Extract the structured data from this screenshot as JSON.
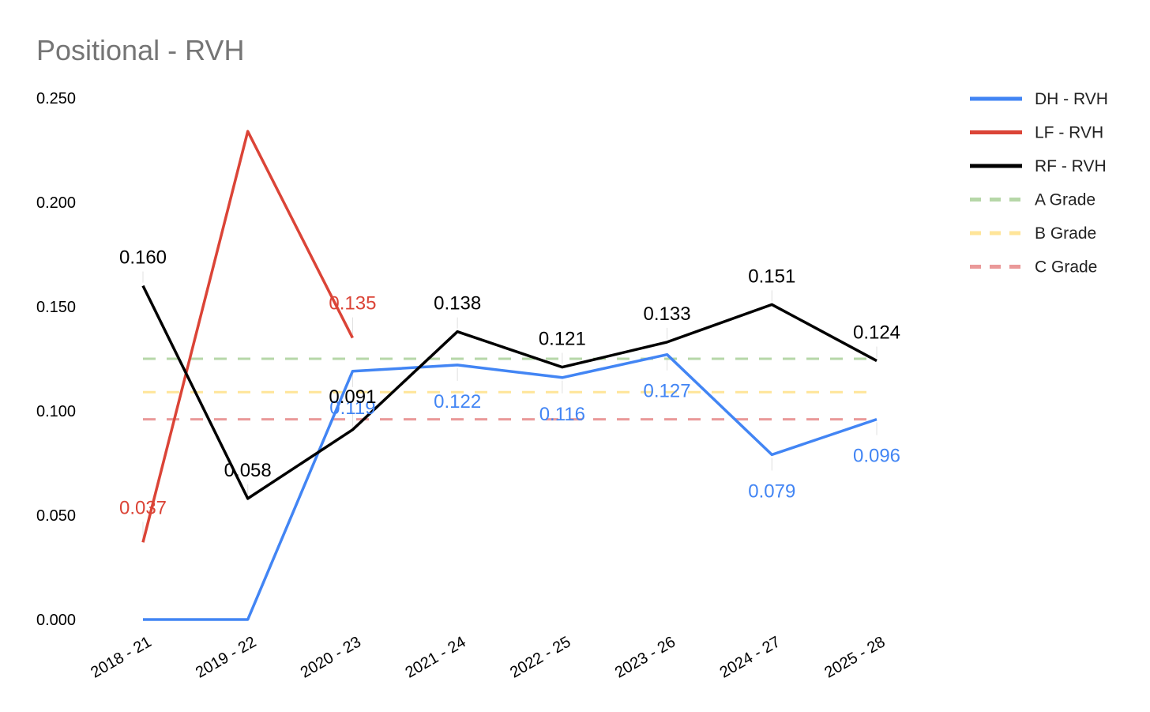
{
  "chart_data": {
    "type": "line",
    "title": "Positional - RVH",
    "xlabel": "",
    "ylabel": "",
    "ylim": [
      0,
      0.25
    ],
    "yticks": [
      "0.000",
      "0.050",
      "0.100",
      "0.150",
      "0.200",
      "0.250"
    ],
    "categories": [
      "2018 - 21",
      "2019 - 22",
      "2020 - 23",
      "2021 - 24",
      "2022 - 25",
      "2023 - 26",
      "2024 - 27",
      "2025 - 28"
    ],
    "legend_position": "right",
    "series": [
      {
        "name": "DH - RVH",
        "color": "#4285f4",
        "style": "solid",
        "values": [
          0.0,
          0.0,
          0.119,
          0.122,
          0.116,
          0.127,
          0.079,
          0.096
        ],
        "labels": [
          null,
          null,
          "0.119",
          "0.122",
          "0.116",
          "0.127",
          "0.079",
          "0.096"
        ]
      },
      {
        "name": "LF - RVH",
        "color": "#db4437",
        "style": "solid",
        "values": [
          0.037,
          0.234,
          0.135,
          null,
          null,
          null,
          null,
          null
        ],
        "labels": [
          "0.037",
          null,
          "0.135",
          null,
          null,
          null,
          null,
          null
        ]
      },
      {
        "name": "RF - RVH",
        "color": "#000000",
        "style": "solid",
        "values": [
          0.16,
          0.058,
          0.091,
          0.138,
          0.121,
          0.133,
          0.151,
          0.124
        ],
        "labels": [
          "0.160",
          "0.058",
          "0.091",
          "0.138",
          "0.121",
          "0.133",
          "0.151",
          "0.124"
        ]
      },
      {
        "name": "A Grade",
        "color": "#b6d7a8",
        "style": "dashed",
        "values": [
          0.125,
          0.125,
          0.125,
          0.125,
          0.125,
          0.125,
          0.125,
          0.125
        ],
        "labels": [
          null,
          null,
          null,
          null,
          null,
          null,
          null,
          null
        ]
      },
      {
        "name": "B Grade",
        "color": "#ffe599",
        "style": "dashed",
        "values": [
          0.109,
          0.109,
          0.109,
          0.109,
          0.109,
          0.109,
          0.109,
          0.109
        ],
        "labels": [
          null,
          null,
          null,
          null,
          null,
          null,
          null,
          null
        ]
      },
      {
        "name": "C Grade",
        "color": "#ea9999",
        "style": "dashed",
        "values": [
          0.096,
          0.096,
          0.096,
          0.096,
          0.096,
          0.096,
          0.096,
          0.096
        ],
        "labels": [
          null,
          null,
          null,
          null,
          null,
          null,
          null,
          null
        ]
      }
    ]
  }
}
